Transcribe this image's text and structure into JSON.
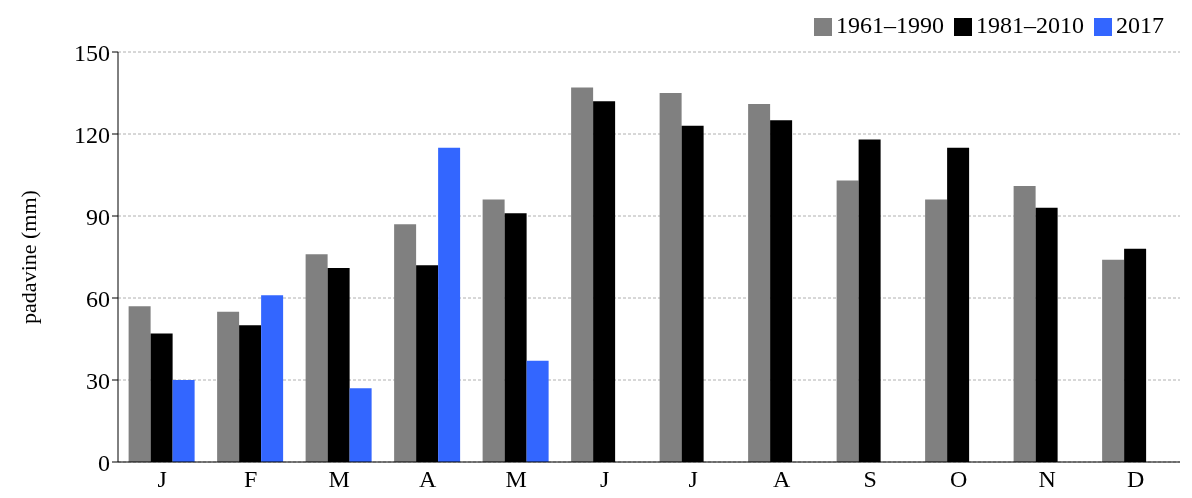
{
  "chart_data": {
    "type": "bar",
    "ylabel": "padavine (mm)",
    "categories": [
      "J",
      "F",
      "M",
      "A",
      "M",
      "J",
      "J",
      "A",
      "S",
      "O",
      "N",
      "D"
    ],
    "series": [
      {
        "name": "1961–1990",
        "color": "#808080",
        "values": [
          57,
          55,
          76,
          87,
          96,
          137,
          135,
          131,
          103,
          96,
          101,
          74
        ]
      },
      {
        "name": "1981–2010",
        "color": "#000000",
        "values": [
          47,
          50,
          71,
          72,
          91,
          132,
          123,
          125,
          118,
          115,
          93,
          78
        ]
      },
      {
        "name": "2017",
        "color": "#3366ff",
        "values": [
          30,
          61,
          27,
          115,
          37,
          null,
          null,
          null,
          null,
          null,
          null,
          null
        ]
      }
    ],
    "ylim": [
      0,
      150
    ],
    "yticks": [
      0,
      30,
      60,
      90,
      120,
      150
    ],
    "grid": "y",
    "legend": "top right"
  }
}
